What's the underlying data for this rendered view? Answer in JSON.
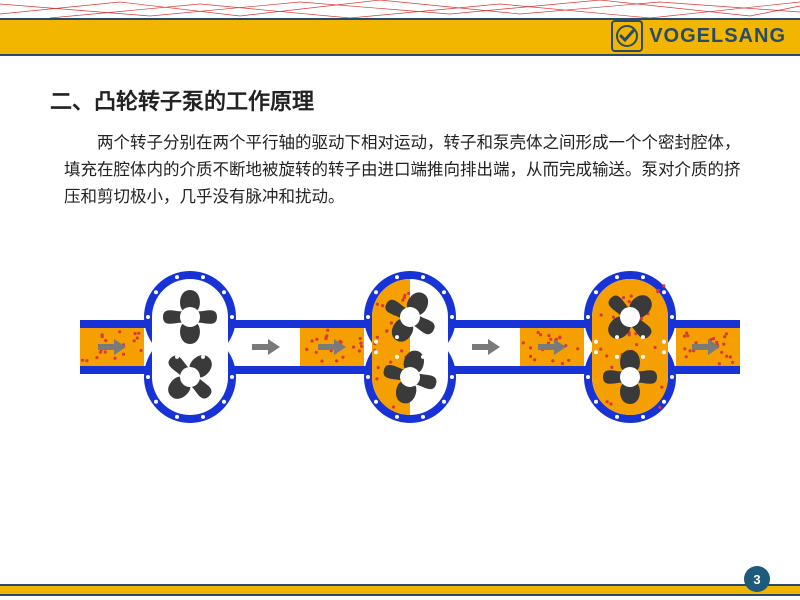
{
  "brand": {
    "name": "VOGELSANG",
    "logo_border": "#2a4a6a",
    "logo_bg": "#f2b600",
    "check_color": "#2a4a6a"
  },
  "colors": {
    "header_yellow": "#f2b600",
    "header_rule": "#2a4a6a",
    "line_network": "#d63a3a",
    "text": "#222222",
    "page_badge_bg": "#1e5a7a",
    "footer_yellow": "#f2b600"
  },
  "title": "二、凸轮转子泵的工作原理",
  "body": "两个转子分别在两个平行轴的驱动下相对运动，转子和泵壳体之间形成一个个密封腔体，填充在腔体内的介质不断地被旋转的转子由进口端推向排出端，从而完成输送。泵对介质的挤压和剪切极小，几乎没有脉冲和扰动。",
  "page_number": "3",
  "diagram": {
    "type": "infographic",
    "stages": 3,
    "casing_color": "#1733d6",
    "fluid_color": "#f5a000",
    "rotor_color": "#3a3a3a",
    "shaft_color": "#ffffff",
    "dot_color": "#d63a3a",
    "arrow_color": "#7a7a7a",
    "bolt_color": "#ffffff",
    "stage_fill": [
      {
        "left": true,
        "chamber": false,
        "right": false,
        "top_rot": 0,
        "bot_rot": 45
      },
      {
        "left": true,
        "chamber": "half",
        "right": false,
        "top_rot": 30,
        "bot_rot": 15
      },
      {
        "left": true,
        "chamber": true,
        "right": true,
        "top_rot": 45,
        "bot_rot": 0
      }
    ]
  }
}
